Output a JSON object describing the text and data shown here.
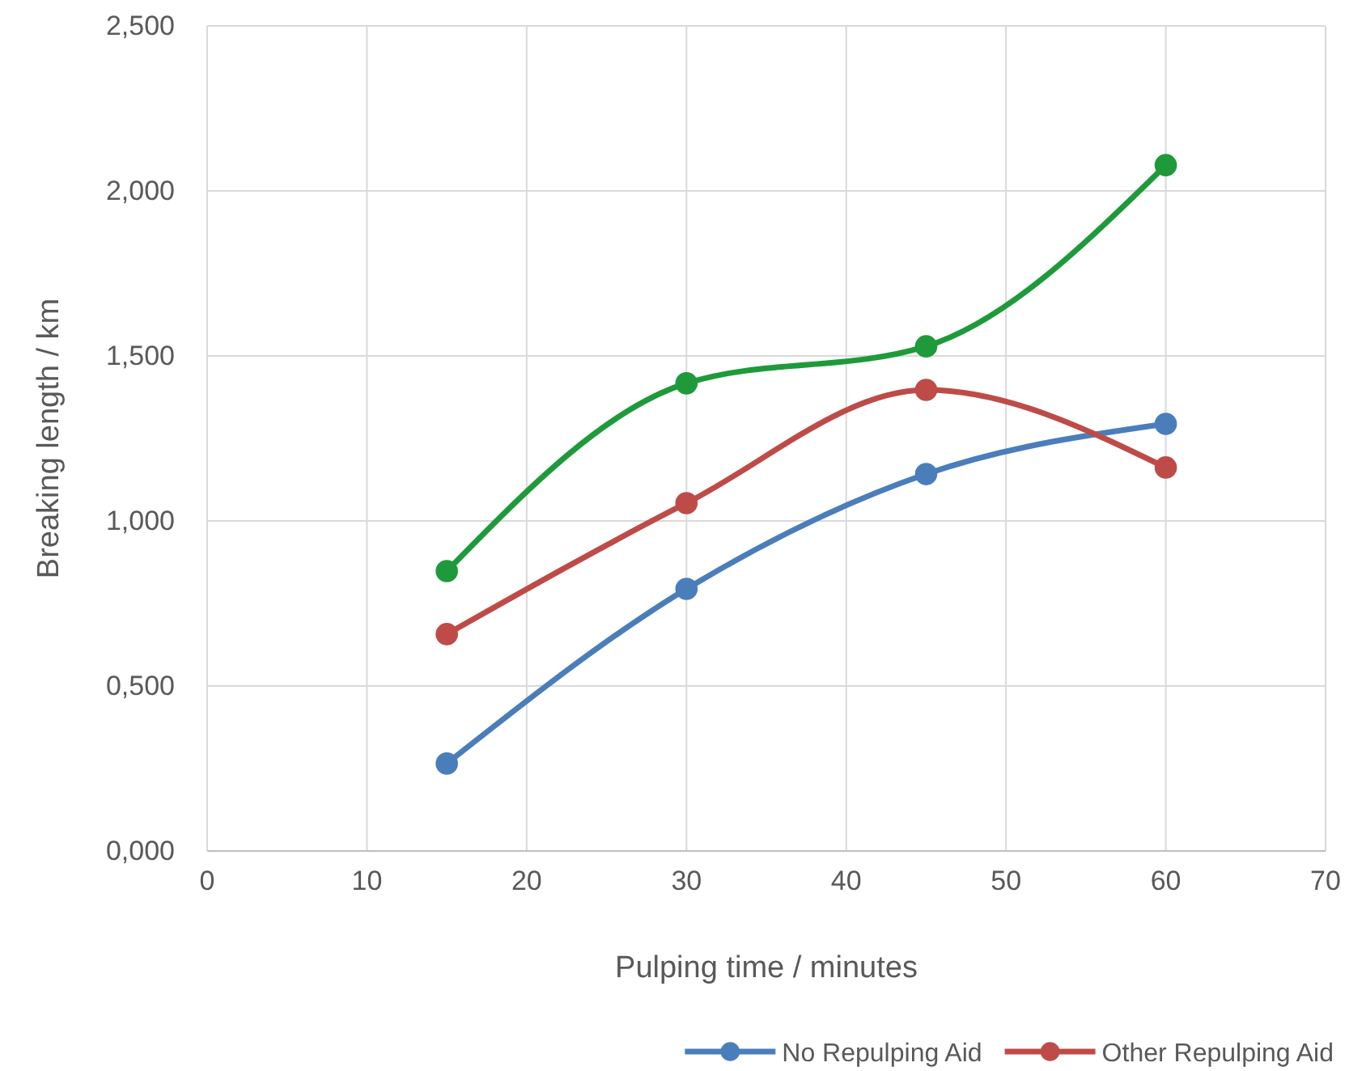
{
  "chart_data": {
    "type": "line",
    "xlabel": "Pulping time /  minutes",
    "ylabel": "Breaking length / km",
    "x": [
      15,
      30,
      45,
      60
    ],
    "series": [
      {
        "name": "No Repulping Aid",
        "color": "#4a7ebb",
        "values": [
          0.265,
          0.794,
          1.142,
          1.294
        ]
      },
      {
        "name": "Other Repulping Aid",
        "color": "#be4b48",
        "values": [
          0.657,
          1.054,
          1.397,
          1.162
        ]
      },
      {
        "color": "#1f9a3a",
        "values": [
          0.848,
          1.417,
          1.529,
          2.078
        ]
      }
    ],
    "xlim": [
      0,
      70
    ],
    "xticks": [
      0,
      10,
      20,
      30,
      40,
      50,
      60,
      70
    ],
    "ylim": [
      0,
      2.5
    ],
    "yticks": [
      {
        "value": 0,
        "label": "0,000"
      },
      {
        "value": 0.5,
        "label": "0,500"
      },
      {
        "value": 1,
        "label": "1,000"
      },
      {
        "value": 1.5,
        "label": "1,500"
      },
      {
        "value": 2,
        "label": "2,000"
      },
      {
        "value": 2.5,
        "label": "2,500"
      }
    ],
    "grid": true,
    "legend": "bottom",
    "marker": "circle",
    "line_style": "solid"
  }
}
